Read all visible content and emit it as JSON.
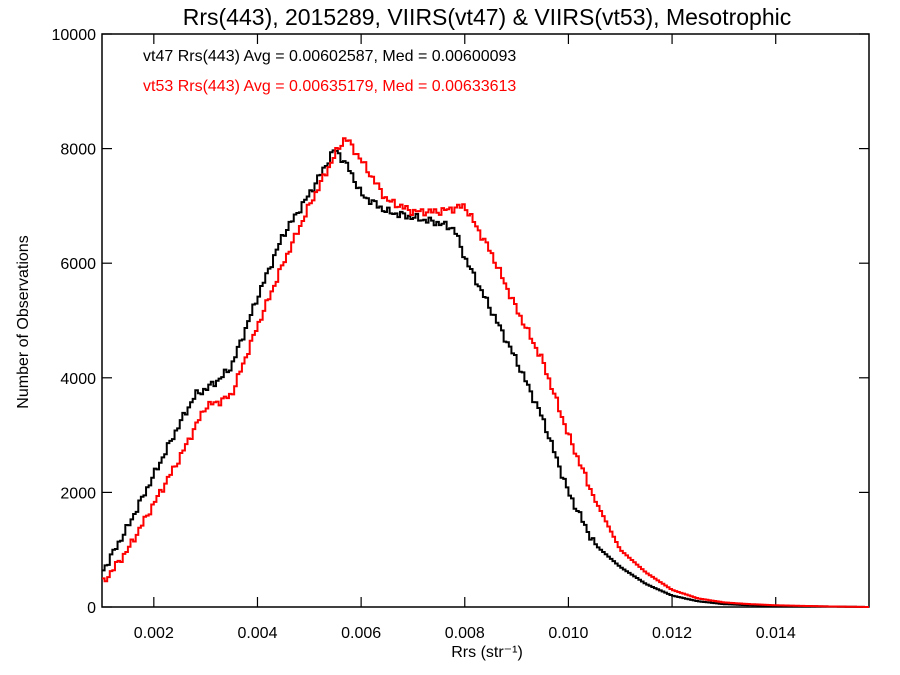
{
  "chart_data": {
    "type": "line",
    "title": "Rrs(443), 2015289, VIIRS(vt47) & VIIRS(vt53), Mesotrophic",
    "xlabel": "Rrs (str⁻¹)",
    "ylabel": "Number of Observations",
    "xlim": [
      0.001,
      0.0158
    ],
    "ylim": [
      0,
      10000
    ],
    "x_ticks": [
      0.002,
      0.004,
      0.006,
      0.008,
      0.01,
      0.012,
      0.014
    ],
    "x_tick_labels": [
      "0.002",
      "0.004",
      "0.006",
      "0.008",
      "0.010",
      "0.012",
      "0.014"
    ],
    "y_ticks": [
      0,
      2000,
      4000,
      6000,
      8000,
      10000
    ],
    "y_tick_labels": [
      "0",
      "2000",
      "4000",
      "6000",
      "8000",
      "10000"
    ],
    "grid": false,
    "annotations": [
      {
        "text": "vt47 Rrs(443) Avg = 0.00602587, Med = 0.00600093",
        "color": "#000000"
      },
      {
        "text": "vt53 Rrs(443) Avg = 0.00635179, Med = 0.00633613",
        "color": "#ff0000"
      }
    ],
    "series": [
      {
        "color": "#000000",
        "x": [
          0.001,
          0.0015,
          0.002,
          0.0025,
          0.0028,
          0.003,
          0.0033,
          0.0035,
          0.004,
          0.0045,
          0.005,
          0.0055,
          0.0058,
          0.006,
          0.0065,
          0.007,
          0.0075,
          0.0078,
          0.008,
          0.0085,
          0.009,
          0.0095,
          0.01,
          0.0105,
          0.011,
          0.0115,
          0.012,
          0.0125,
          0.013,
          0.0135,
          0.014,
          0.015,
          0.0158
        ],
        "y": [
          600,
          1400,
          2300,
          3200,
          3700,
          3800,
          4000,
          4200,
          5400,
          6500,
          7200,
          8000,
          7600,
          7200,
          6900,
          6800,
          6700,
          6600,
          6100,
          5200,
          4300,
          3300,
          2000,
          1100,
          700,
          400,
          200,
          100,
          50,
          30,
          20,
          10,
          0
        ]
      },
      {
        "color": "#ff0000",
        "x": [
          0.001,
          0.0015,
          0.002,
          0.0025,
          0.003,
          0.0033,
          0.0035,
          0.004,
          0.0045,
          0.005,
          0.0055,
          0.0057,
          0.006,
          0.0065,
          0.007,
          0.0075,
          0.008,
          0.0085,
          0.009,
          0.0095,
          0.01,
          0.0105,
          0.011,
          0.0115,
          0.012,
          0.0125,
          0.013,
          0.0135,
          0.014,
          0.015,
          0.0158
        ],
        "y": [
          400,
          1000,
          1800,
          2600,
          3500,
          3600,
          3700,
          4900,
          6000,
          7000,
          7900,
          8200,
          7800,
          7100,
          6900,
          6900,
          7000,
          6200,
          5200,
          4300,
          3000,
          1900,
          1000,
          600,
          300,
          150,
          80,
          50,
          30,
          10,
          0
        ]
      }
    ]
  }
}
